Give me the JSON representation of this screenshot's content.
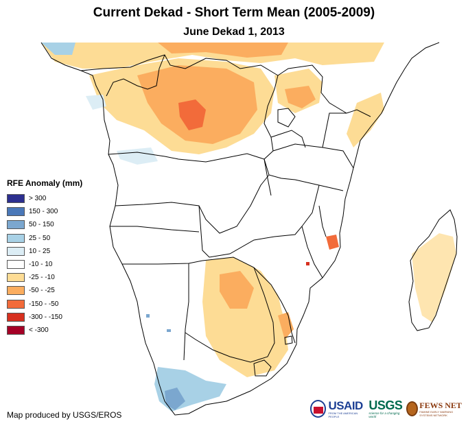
{
  "header": {
    "title": "Current Dekad - Short Term Mean (2005-2009)",
    "subtitle": "June Dekad 1, 2013"
  },
  "legend": {
    "title": "RFE Anomaly (mm)",
    "items": [
      {
        "label": "> 300",
        "color": "#2c2f8f"
      },
      {
        "label": "150 - 300",
        "color": "#4a78b8"
      },
      {
        "label": "50 - 150",
        "color": "#7ba7cf"
      },
      {
        "label": "25 - 50",
        "color": "#a8d1e6"
      },
      {
        "label": "10 - 25",
        "color": "#dcedf5"
      },
      {
        "label": "-10 - 10",
        "color": "#ffffff"
      },
      {
        "label": "-25 - -10",
        "color": "#fddc95"
      },
      {
        "label": "-50 - -25",
        "color": "#fbad5f"
      },
      {
        "label": "-150 - -50",
        "color": "#f26b3a"
      },
      {
        "label": "-300 - -150",
        "color": "#d7301f"
      },
      {
        "label": "< -300",
        "color": "#a50026"
      }
    ]
  },
  "footer": {
    "credit": "Map produced by USGS/EROS",
    "logos": {
      "usaid": "USAID",
      "usaid_tagline": "FROM THE AMERICAN PEOPLE",
      "usgs": "USGS",
      "usgs_tagline": "science for a changing world",
      "fews": "FEWS NET",
      "fews_tagline": "FAMINE EARLY WARNING SYSTEMS NETWORK"
    }
  }
}
